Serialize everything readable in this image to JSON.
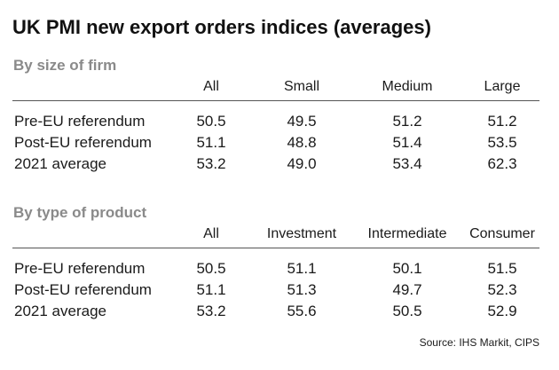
{
  "title": "UK PMI new export orders indices (averages)",
  "source": "Source: IHS Markit, CIPS",
  "chart_data": [
    {
      "type": "table",
      "section_title": "By size of firm",
      "columns": [
        "All",
        "Small",
        "Medium",
        "Large"
      ],
      "rows": [
        {
          "label": "Pre-EU referendum",
          "values": [
            "50.5",
            "49.5",
            "51.2",
            "51.2"
          ]
        },
        {
          "label": "Post-EU referendum",
          "values": [
            "51.1",
            "48.8",
            "51.4",
            "53.5"
          ]
        },
        {
          "label": "2021 average",
          "values": [
            "53.2",
            "49.0",
            "53.4",
            "62.3"
          ]
        }
      ]
    },
    {
      "type": "table",
      "section_title": "By type of product",
      "columns": [
        "All",
        "Investment",
        "Intermediate",
        "Consumer"
      ],
      "rows": [
        {
          "label": "Pre-EU referendum",
          "values": [
            "50.5",
            "51.1",
            "50.1",
            "51.5"
          ]
        },
        {
          "label": "Post-EU referendum",
          "values": [
            "51.1",
            "51.3",
            "49.7",
            "52.3"
          ]
        },
        {
          "label": "2021 average",
          "values": [
            "53.2",
            "55.6",
            "50.5",
            "52.9"
          ]
        }
      ]
    }
  ]
}
